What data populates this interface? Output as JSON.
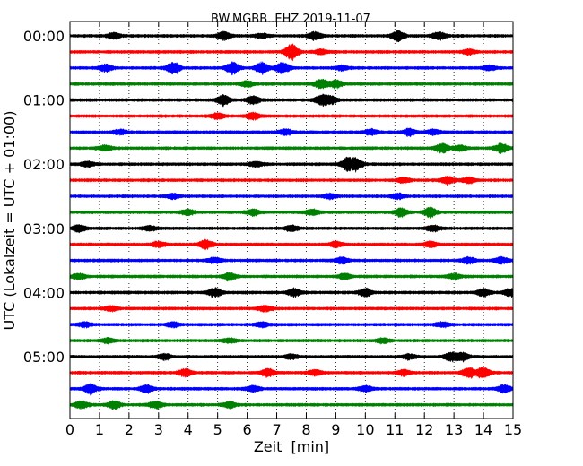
{
  "chart_data": {
    "type": "line",
    "title": "BW.MGBB..EHZ 2019-11-07",
    "xlabel": "Zeit  [min]",
    "ylabel": "UTC (Lokalzeit = UTC + 01:00)",
    "xlim": [
      0,
      15
    ],
    "x_ticks": [
      "0",
      "1",
      "2",
      "3",
      "4",
      "5",
      "6",
      "7",
      "8",
      "9",
      "10",
      "11",
      "12",
      "13",
      "14",
      "15"
    ],
    "y_ticks": [
      "00:00",
      "01:00",
      "02:00",
      "03:00",
      "04:00",
      "05:00"
    ],
    "grid": "vertical dotted",
    "trace_interval_min": 15,
    "color_cycle": [
      "#000000",
      "#ff0000",
      "#0000ff",
      "#008000"
    ],
    "traces": [
      {
        "start": "00:00",
        "color": "#000000",
        "bursts": [
          [
            1.5,
            3
          ],
          [
            5.2,
            4
          ],
          [
            6.5,
            2.5
          ],
          [
            8.3,
            4
          ],
          [
            11.1,
            5
          ],
          [
            12.5,
            4
          ]
        ]
      },
      {
        "start": "00:15",
        "color": "#ff0000",
        "bursts": [
          [
            7.5,
            8
          ],
          [
            8.5,
            2.5
          ],
          [
            13.5,
            2.5
          ]
        ]
      },
      {
        "start": "00:30",
        "color": "#0000ff",
        "bursts": [
          [
            1.2,
            4
          ],
          [
            3.5,
            6
          ],
          [
            5.5,
            6
          ],
          [
            6.5,
            6
          ],
          [
            7.2,
            6
          ],
          [
            9.2,
            2.5
          ],
          [
            14.2,
            2.5
          ]
        ]
      },
      {
        "start": "00:45",
        "color": "#008000",
        "bursts": [
          [
            6.0,
            3
          ],
          [
            8.5,
            5
          ],
          [
            9.0,
            4
          ]
        ]
      },
      {
        "start": "01:00",
        "color": "#000000",
        "bursts": [
          [
            5.2,
            5
          ],
          [
            6.2,
            4
          ],
          [
            8.5,
            5
          ],
          [
            8.8,
            4
          ]
        ]
      },
      {
        "start": "01:15",
        "color": "#ff0000",
        "bursts": [
          [
            5.0,
            3
          ],
          [
            6.2,
            3.5
          ]
        ]
      },
      {
        "start": "01:30",
        "color": "#0000ff",
        "bursts": [
          [
            1.7,
            2.5
          ],
          [
            7.3,
            3
          ],
          [
            10.2,
            3
          ],
          [
            11.5,
            3.5
          ],
          [
            12.3,
            3
          ]
        ]
      },
      {
        "start": "01:45",
        "color": "#008000",
        "bursts": [
          [
            1.2,
            3
          ],
          [
            12.6,
            5
          ],
          [
            13.2,
            3
          ],
          [
            14.6,
            5
          ]
        ]
      },
      {
        "start": "02:00",
        "color": "#000000",
        "bursts": [
          [
            0.6,
            3
          ],
          [
            6.3,
            2.5
          ],
          [
            9.4,
            6.5
          ],
          [
            9.7,
            5
          ]
        ]
      },
      {
        "start": "02:15",
        "color": "#ff0000",
        "bursts": [
          [
            11.3,
            2.5
          ],
          [
            12.8,
            4
          ],
          [
            13.5,
            3
          ]
        ]
      },
      {
        "start": "02:30",
        "color": "#0000ff",
        "bursts": [
          [
            3.5,
            2.5
          ],
          [
            8.8,
            2.5
          ],
          [
            11.1,
            3
          ]
        ]
      },
      {
        "start": "02:45",
        "color": "#008000",
        "bursts": [
          [
            4.0,
            3
          ],
          [
            6.2,
            3
          ],
          [
            8.2,
            3
          ],
          [
            11.2,
            4
          ],
          [
            12.2,
            5
          ]
        ]
      },
      {
        "start": "03:00",
        "color": "#000000",
        "bursts": [
          [
            0.3,
            3.5
          ],
          [
            2.7,
            2.5
          ],
          [
            7.5,
            3
          ],
          [
            12.3,
            3
          ]
        ]
      },
      {
        "start": "03:15",
        "color": "#ff0000",
        "bursts": [
          [
            3.0,
            3
          ],
          [
            4.6,
            5
          ],
          [
            9.0,
            3
          ],
          [
            12.2,
            3
          ]
        ]
      },
      {
        "start": "03:30",
        "color": "#0000ff",
        "bursts": [
          [
            4.9,
            3
          ],
          [
            9.2,
            3.5
          ],
          [
            13.5,
            3.5
          ],
          [
            14.6,
            3.5
          ]
        ]
      },
      {
        "start": "03:45",
        "color": "#008000",
        "bursts": [
          [
            0.3,
            3
          ],
          [
            5.4,
            3.5
          ],
          [
            9.3,
            3
          ],
          [
            13.0,
            3
          ]
        ]
      },
      {
        "start": "04:00",
        "color": "#000000",
        "bursts": [
          [
            4.9,
            4.5
          ],
          [
            7.6,
            4
          ],
          [
            10.0,
            4
          ],
          [
            14.0,
            4
          ],
          [
            14.9,
            4
          ]
        ]
      },
      {
        "start": "04:15",
        "color": "#ff0000",
        "bursts": [
          [
            1.4,
            2.5
          ],
          [
            6.6,
            3
          ]
        ]
      },
      {
        "start": "04:30",
        "color": "#0000ff",
        "bursts": [
          [
            0.5,
            2.5
          ],
          [
            3.5,
            2.5
          ],
          [
            6.5,
            2.5
          ],
          [
            12.6,
            2.5
          ]
        ]
      },
      {
        "start": "04:45",
        "color": "#008000",
        "bursts": [
          [
            1.3,
            2.5
          ],
          [
            5.4,
            2.5
          ],
          [
            10.6,
            2.5
          ]
        ]
      },
      {
        "start": "05:00",
        "color": "#000000",
        "bursts": [
          [
            3.2,
            3
          ],
          [
            7.5,
            2.5
          ],
          [
            11.5,
            2.5
          ],
          [
            12.9,
            4.5
          ],
          [
            13.3,
            4
          ]
        ]
      },
      {
        "start": "05:15",
        "color": "#ff0000",
        "bursts": [
          [
            3.9,
            4
          ],
          [
            6.7,
            4
          ],
          [
            8.3,
            3
          ],
          [
            11.3,
            3
          ],
          [
            13.5,
            5
          ],
          [
            14.0,
            5.5
          ]
        ]
      },
      {
        "start": "05:30",
        "color": "#0000ff",
        "bursts": [
          [
            0.7,
            5
          ],
          [
            2.6,
            4
          ],
          [
            6.2,
            3
          ],
          [
            10.0,
            3
          ],
          [
            14.7,
            4
          ]
        ]
      },
      {
        "start": "05:45",
        "color": "#008000",
        "bursts": [
          [
            0.4,
            4
          ],
          [
            1.5,
            4
          ],
          [
            2.9,
            3.5
          ],
          [
            5.4,
            3
          ]
        ]
      }
    ]
  }
}
